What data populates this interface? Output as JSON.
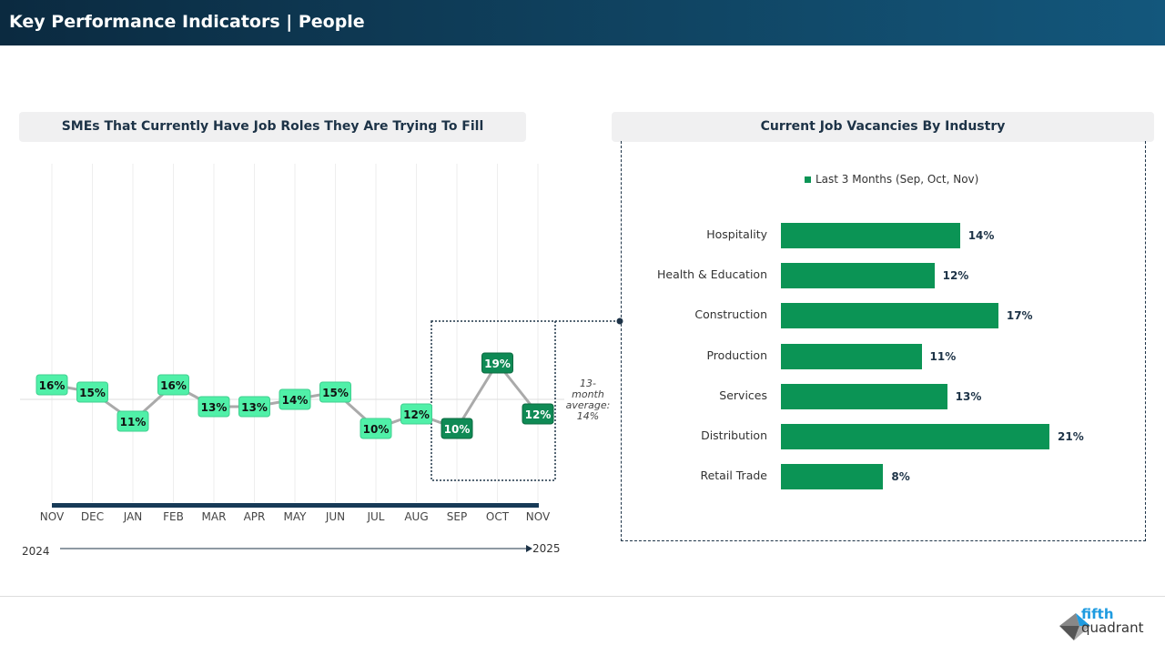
{
  "header": {
    "title": "Key Performance Indicators | People"
  },
  "left_panel": {
    "title": "SMEs That Currently Have Job Roles They Are Trying To Fill"
  },
  "right_panel": {
    "title": "Current Job Vacancies By Industry"
  },
  "chart_data": [
    {
      "type": "line",
      "title": "SMEs That Currently Have Job Roles They Are Trying To Fill",
      "categories": [
        "NOV",
        "DEC",
        "JAN",
        "FEB",
        "MAR",
        "APR",
        "MAY",
        "JUN",
        "JUL",
        "AUG",
        "SEP",
        "OCT",
        "NOV"
      ],
      "values": [
        16,
        15,
        11,
        16,
        13,
        13,
        14,
        15,
        10,
        12,
        10,
        19,
        12
      ],
      "labels": [
        "16%",
        "15%",
        "11%",
        "16%",
        "13%",
        "13%",
        "14%",
        "15%",
        "10%",
        "12%",
        "10%",
        "19%",
        "12%"
      ],
      "highlighted": [
        "SEP",
        "OCT",
        "NOV"
      ],
      "average": 14,
      "average_label": [
        "13-",
        "month",
        "average:",
        "14%"
      ],
      "year_start": "2024",
      "year_end": "2025",
      "colors": {
        "point": "#50f0a8",
        "highlight": "#0f8a55",
        "line": "#aaaaaa",
        "axis": "#173a57"
      }
    },
    {
      "type": "bar",
      "orientation": "horizontal",
      "legend": "Last 3 Months (Sep, Oct, Nov)",
      "categories": [
        "Hospitality",
        "Health & Education",
        "Construction",
        "Production",
        "Services",
        "Distribution",
        "Retail Trade"
      ],
      "values": [
        14,
        12,
        17,
        11,
        13,
        21,
        8
      ],
      "labels": [
        "14%",
        "12%",
        "17%",
        "11%",
        "13%",
        "21%",
        "8%"
      ],
      "color": "#0b9455"
    }
  ],
  "logo": {
    "text": "fifth quadrant"
  }
}
